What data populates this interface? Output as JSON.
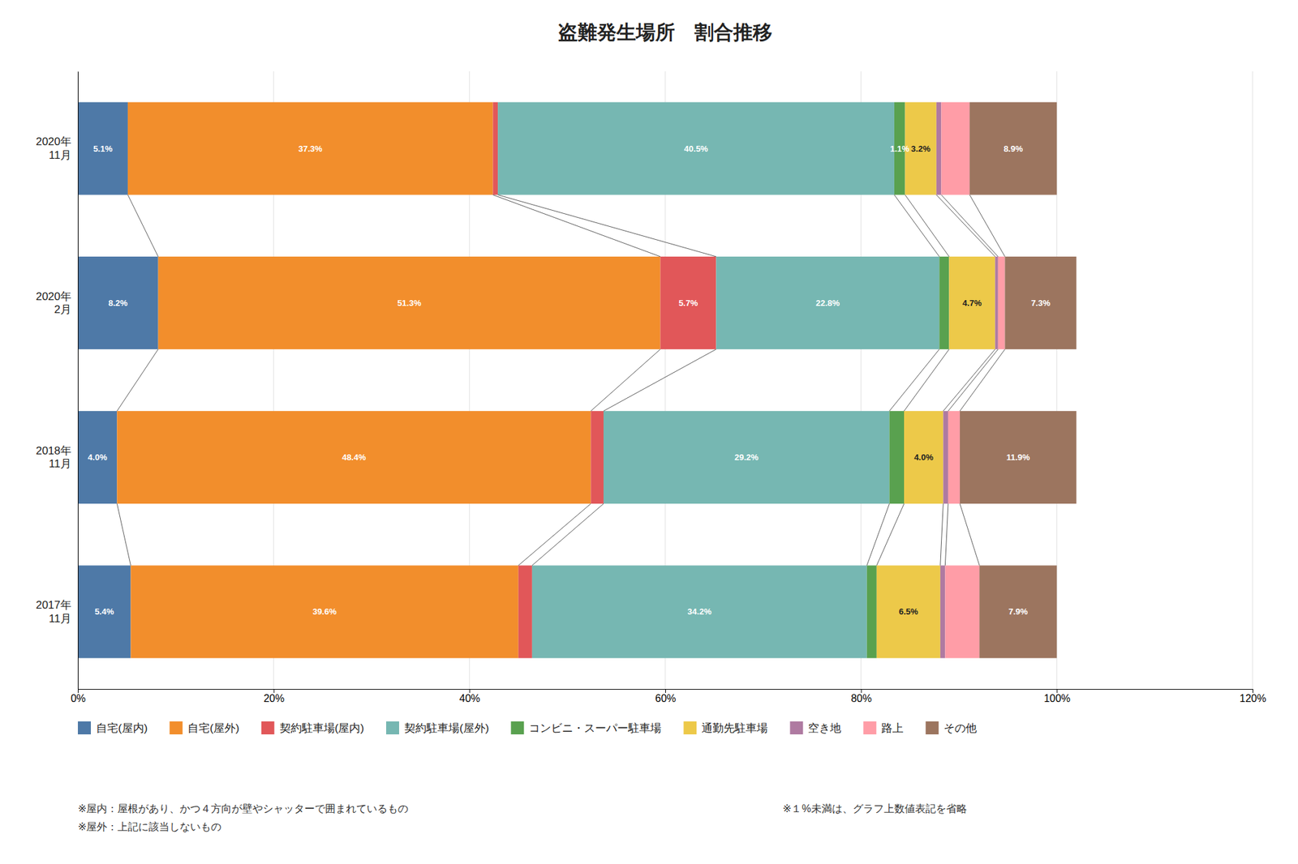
{
  "chart_data": {
    "type": "bar",
    "orientation": "horizontal",
    "stacked": true,
    "title": "盗難発生場所　割合推移",
    "categories": [
      "2017年\n11月",
      "2018年\n11月",
      "2020年\n2月",
      "2020年\n11月"
    ],
    "series": [
      {
        "name": "自宅(屋内)",
        "values": [
          5.4,
          4.0,
          8.2,
          5.1
        ],
        "value_labels": [
          "5.4%",
          "4.0%",
          "8.2%",
          "5.1%"
        ]
      },
      {
        "name": "自宅(屋外)",
        "values": [
          39.6,
          48.4,
          51.3,
          37.3
        ],
        "value_labels": [
          "39.6%",
          "48.4%",
          "51.3%",
          "37.3%"
        ]
      },
      {
        "name": "契約駐車場(屋内)",
        "values": [
          1.4,
          1.3,
          5.7,
          0.5
        ],
        "value_labels": [
          null,
          null,
          "5.7%",
          null
        ]
      },
      {
        "name": "契約駐車場(屋外)",
        "values": [
          34.2,
          29.2,
          22.8,
          40.5
        ],
        "value_labels": [
          "34.2%",
          "29.2%",
          "22.8%",
          "40.5%"
        ]
      },
      {
        "name": "コンビニ・スーパー駐車場",
        "values": [
          1.0,
          1.5,
          1.0,
          1.1
        ],
        "value_labels": [
          null,
          null,
          null,
          "1.1%"
        ]
      },
      {
        "name": "通勤先駐車場",
        "values": [
          6.5,
          4.0,
          4.7,
          3.2
        ],
        "value_labels": [
          "6.5%",
          "4.0%",
          "4.7%",
          "3.2%"
        ]
      },
      {
        "name": "空き地",
        "values": [
          0.5,
          0.5,
          0.3,
          0.5
        ],
        "value_labels": [
          null,
          null,
          null,
          null
        ]
      },
      {
        "name": "路上",
        "values": [
          3.5,
          1.2,
          0.7,
          2.9
        ],
        "value_labels": [
          null,
          null,
          null,
          null
        ]
      },
      {
        "name": "その他",
        "values": [
          7.9,
          11.9,
          7.3,
          8.9
        ],
        "value_labels": [
          "7.9%",
          "11.9%",
          "7.3%",
          "8.9%"
        ]
      }
    ],
    "xlim": [
      0,
      120
    ],
    "xticks": [
      {
        "value": 0,
        "label": "0%"
      },
      {
        "value": 20,
        "label": "20%"
      },
      {
        "value": 40,
        "label": "40%"
      },
      {
        "value": 60,
        "label": "60%"
      },
      {
        "value": 80,
        "label": "80%"
      },
      {
        "value": 100,
        "label": "100%"
      },
      {
        "value": 120,
        "label": "120%"
      }
    ],
    "grid": true,
    "legend": "bottom",
    "data_labels": true,
    "annotations": [
      "※屋内：屋根があり、かつ４方向が壁やシャッターで囲まれているもの",
      "※屋外：上記に該当しないもの",
      "※１%未満は、グラフ上数値表記を省略"
    ]
  }
}
